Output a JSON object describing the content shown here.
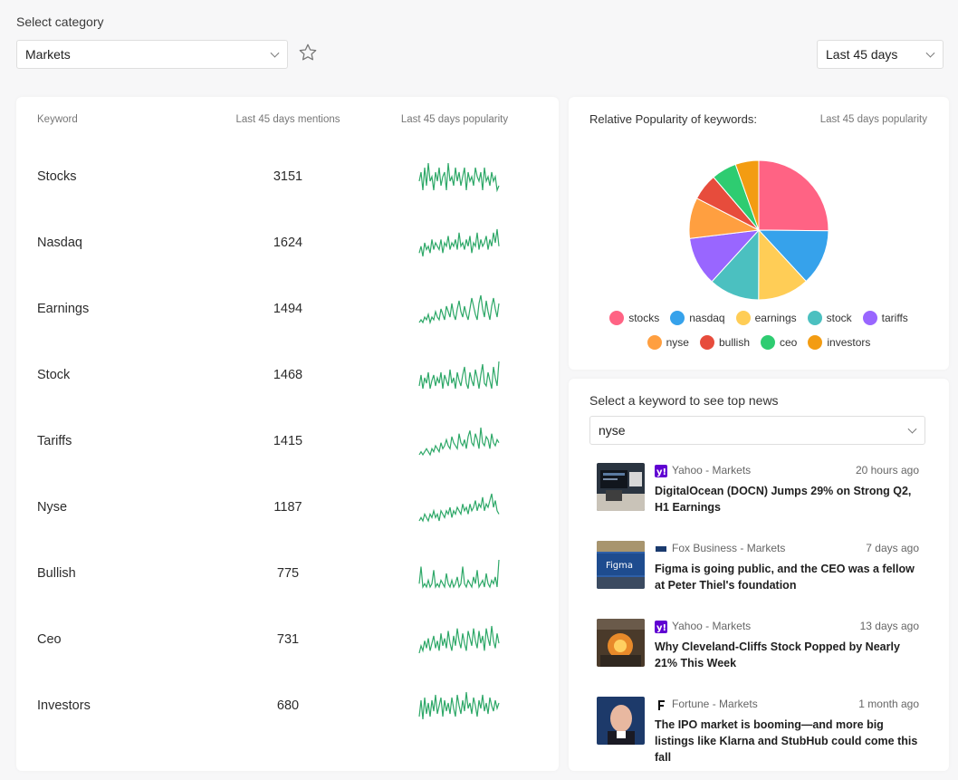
{
  "header": {
    "category_label": "Select category",
    "category_value": "Markets",
    "range_value": "Last 45 days"
  },
  "table": {
    "headers": [
      "Keyword",
      "Last 45 days mentions",
      "Last 45 days popularity"
    ],
    "rows": [
      {
        "keyword": "Stocks",
        "mentions": "3151",
        "trend": [
          5,
          7,
          3,
          8,
          4,
          9,
          5,
          6,
          3,
          7,
          5,
          8,
          4,
          6,
          7,
          3,
          9,
          5,
          6,
          4,
          8,
          5,
          7,
          4,
          6,
          8,
          3,
          7,
          5,
          6,
          4,
          8,
          6,
          5,
          7,
          3,
          8,
          5,
          6,
          4,
          7,
          5,
          6,
          3,
          4
        ]
      },
      {
        "keyword": "Nasdaq",
        "mentions": "1624",
        "trend": [
          3,
          5,
          2,
          6,
          4,
          5,
          3,
          7,
          4,
          6,
          5,
          4,
          7,
          3,
          6,
          5,
          8,
          4,
          6,
          5,
          7,
          4,
          9,
          5,
          6,
          4,
          7,
          5,
          8,
          3,
          6,
          5,
          9,
          4,
          7,
          5,
          6,
          8,
          4,
          7,
          5,
          9,
          6,
          10,
          5
        ]
      },
      {
        "keyword": "Earnings",
        "mentions": "1494",
        "trend": [
          2,
          3,
          2,
          4,
          3,
          5,
          2,
          4,
          3,
          6,
          4,
          3,
          7,
          5,
          3,
          8,
          6,
          4,
          9,
          5,
          3,
          7,
          10,
          6,
          4,
          8,
          5,
          3,
          7,
          11,
          8,
          5,
          3,
          9,
          12,
          7,
          4,
          10,
          6,
          3,
          8,
          11,
          7,
          4,
          9
        ]
      },
      {
        "keyword": "Stock",
        "mentions": "1468",
        "trend": [
          4,
          8,
          3,
          7,
          5,
          9,
          3,
          6,
          8,
          4,
          7,
          5,
          9,
          3,
          8,
          6,
          4,
          10,
          5,
          7,
          3,
          9,
          6,
          4,
          8,
          11,
          5,
          3,
          9,
          6,
          4,
          10,
          7,
          3,
          8,
          12,
          5,
          4,
          9,
          6,
          3,
          11,
          7,
          4,
          13
        ]
      },
      {
        "keyword": "Tariffs",
        "mentions": "1415",
        "trend": [
          2,
          3,
          2,
          3,
          4,
          3,
          2,
          4,
          3,
          5,
          4,
          3,
          6,
          4,
          5,
          7,
          5,
          4,
          8,
          6,
          5,
          4,
          9,
          6,
          5,
          7,
          4,
          8,
          10,
          6,
          5,
          9,
          7,
          4,
          11,
          6,
          5,
          8,
          7,
          4,
          9,
          6,
          5,
          7,
          6
        ]
      },
      {
        "keyword": "Nyse",
        "mentions": "1187",
        "trend": [
          2,
          3,
          2,
          4,
          3,
          2,
          4,
          3,
          5,
          3,
          4,
          2,
          5,
          4,
          3,
          5,
          4,
          6,
          3,
          5,
          4,
          6,
          5,
          4,
          7,
          5,
          6,
          4,
          7,
          5,
          6,
          8,
          5,
          7,
          6,
          9,
          5,
          7,
          6,
          8,
          10,
          6,
          8,
          5,
          4
        ]
      },
      {
        "keyword": "Bullish",
        "mentions": "775",
        "trend": [
          4,
          9,
          3,
          4,
          3,
          5,
          3,
          4,
          8,
          3,
          4,
          3,
          5,
          4,
          3,
          7,
          4,
          3,
          5,
          3,
          4,
          6,
          3,
          4,
          9,
          4,
          3,
          5,
          4,
          3,
          6,
          4,
          8,
          3,
          4,
          5,
          3,
          7,
          4,
          3,
          5,
          4,
          6,
          3,
          11
        ]
      },
      {
        "keyword": "Ceo",
        "mentions": "731",
        "trend": [
          3,
          6,
          4,
          8,
          5,
          9,
          4,
          7,
          10,
          5,
          8,
          4,
          11,
          6,
          9,
          5,
          12,
          7,
          4,
          10,
          6,
          13,
          8,
          5,
          11,
          7,
          4,
          12,
          9,
          6,
          13,
          8,
          5,
          12,
          7,
          10,
          4,
          13,
          9,
          6,
          14,
          8,
          5,
          11,
          7
        ]
      },
      {
        "keyword": "Investors",
        "mentions": "680",
        "trend": [
          4,
          10,
          3,
          11,
          5,
          9,
          4,
          10,
          6,
          12,
          5,
          8,
          11,
          4,
          10,
          6,
          9,
          5,
          11,
          7,
          4,
          12,
          8,
          5,
          10,
          6,
          13,
          7,
          9,
          5,
          11,
          8,
          4,
          10,
          7,
          12,
          6,
          9,
          5,
          11,
          8,
          6,
          10,
          7,
          9
        ]
      }
    ]
  },
  "pie": {
    "title": "Relative Popularity of keywords:",
    "subtitle": "Last 45 days popularity"
  },
  "chart_data": {
    "type": "pie",
    "series": [
      {
        "name": "stocks",
        "value": 3151,
        "color": "#ff6384"
      },
      {
        "name": "nasdaq",
        "value": 1624,
        "color": "#36a2eb"
      },
      {
        "name": "earnings",
        "value": 1494,
        "color": "#ffcd56"
      },
      {
        "name": "stock",
        "value": 1468,
        "color": "#4bc0c0"
      },
      {
        "name": "tariffs",
        "value": 1415,
        "color": "#9966ff"
      },
      {
        "name": "nyse",
        "value": 1187,
        "color": "#ff9f40"
      },
      {
        "name": "bullish",
        "value": 775,
        "color": "#e74c3c"
      },
      {
        "name": "ceo",
        "value": 731,
        "color": "#2ecc71"
      },
      {
        "name": "investors",
        "value": 680,
        "color": "#f39c12"
      }
    ]
  },
  "news": {
    "title": "Select a keyword to see top news",
    "selected_keyword": "nyse",
    "items": [
      {
        "source": "Yahoo - Markets",
        "ago": "20 hours ago",
        "headline": "DigitalOcean (DOCN) Jumps 29% on Strong Q2, H1 Earnings",
        "icon": "yahoo-logo-icon"
      },
      {
        "source": "Fox Business - Markets",
        "ago": "7 days ago",
        "headline": "Figma is going public, and the CEO was a fellow at Peter Thiel's foundation",
        "icon": "fox-business-logo-icon"
      },
      {
        "source": "Yahoo - Markets",
        "ago": "13 days ago",
        "headline": "Why Cleveland-Cliffs Stock Popped by Nearly 21% This Week",
        "icon": "yahoo-logo-icon"
      },
      {
        "source": "Fortune - Markets",
        "ago": "1 month ago",
        "headline": "The IPO market is booming—and more big listings like Klarna and StubHub could come this fall",
        "icon": "fortune-logo-icon"
      }
    ]
  }
}
